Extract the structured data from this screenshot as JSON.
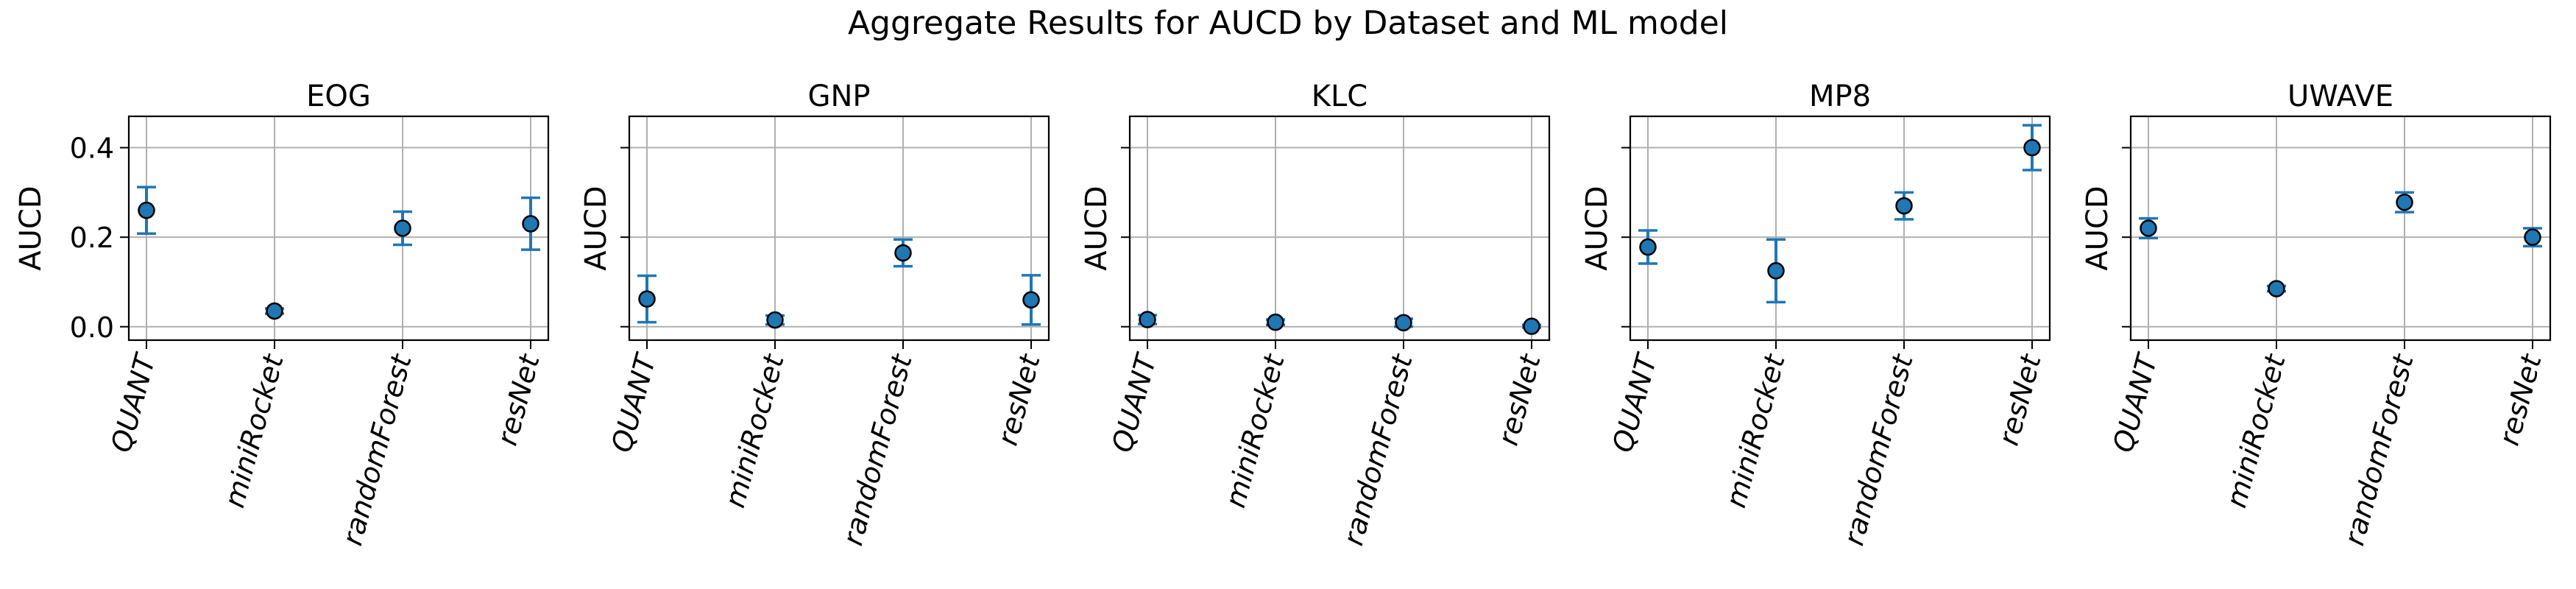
{
  "figure": {
    "suptitle": "Aggregate Results for AUCD by Dataset and ML model"
  },
  "style": {
    "marker_color": "#1f77b4",
    "marker_edge": "#000000",
    "errorbar_color": "#1f77b4",
    "grid_color": "#b0b0b0"
  },
  "chart_data": [
    {
      "type": "scatter",
      "title": "EOG",
      "xlabel": "",
      "ylabel": "AUCD",
      "categories": [
        "QUANT",
        "miniRocket",
        "randomForest",
        "resNet"
      ],
      "values": [
        0.26,
        0.035,
        0.22,
        0.23
      ],
      "errors": [
        0.052,
        0.006,
        0.037,
        0.058
      ],
      "ylim": [
        -0.03,
        0.47
      ],
      "yticks": [
        0.0,
        0.2,
        0.4
      ],
      "ytick_labels": [
        "0.0",
        "0.2",
        "0.4"
      ],
      "show_ytick_labels": true,
      "grid": true,
      "error_bars": true
    },
    {
      "type": "scatter",
      "title": "GNP",
      "xlabel": "",
      "ylabel": "AUCD",
      "categories": [
        "QUANT",
        "miniRocket",
        "randomForest",
        "resNet"
      ],
      "values": [
        0.062,
        0.015,
        0.165,
        0.06
      ],
      "errors": [
        0.052,
        0.01,
        0.03,
        0.055
      ],
      "ylim": [
        -0.03,
        0.47
      ],
      "yticks": [
        0.0,
        0.2,
        0.4
      ],
      "ytick_labels": [
        "0.0",
        "0.2",
        "0.4"
      ],
      "show_ytick_labels": false,
      "grid": true,
      "error_bars": true
    },
    {
      "type": "scatter",
      "title": "KLC",
      "xlabel": "",
      "ylabel": "AUCD",
      "categories": [
        "QUANT",
        "miniRocket",
        "randomForest",
        "resNet"
      ],
      "values": [
        0.016,
        0.01,
        0.009,
        0.001
      ],
      "errors": [
        0.01,
        0.006,
        0.009,
        0.003
      ],
      "ylim": [
        -0.03,
        0.47
      ],
      "yticks": [
        0.0,
        0.2,
        0.4
      ],
      "ytick_labels": [
        "0.0",
        "0.2",
        "0.4"
      ],
      "show_ytick_labels": false,
      "grid": true,
      "error_bars": true
    },
    {
      "type": "scatter",
      "title": "MP8",
      "xlabel": "",
      "ylabel": "AUCD",
      "categories": [
        "QUANT",
        "miniRocket",
        "randomForest",
        "resNet"
      ],
      "values": [
        0.178,
        0.125,
        0.27,
        0.4
      ],
      "errors": [
        0.037,
        0.07,
        0.03,
        0.05
      ],
      "ylim": [
        -0.03,
        0.47
      ],
      "yticks": [
        0.0,
        0.2,
        0.4
      ],
      "ytick_labels": [
        "0.0",
        "0.2",
        "0.4"
      ],
      "show_ytick_labels": false,
      "grid": true,
      "error_bars": true
    },
    {
      "type": "scatter",
      "title": "UWAVE",
      "xlabel": "",
      "ylabel": "AUCD",
      "categories": [
        "QUANT",
        "miniRocket",
        "randomForest",
        "resNet"
      ],
      "values": [
        0.22,
        0.085,
        0.278,
        0.2
      ],
      "errors": [
        0.022,
        0.006,
        0.022,
        0.02
      ],
      "ylim": [
        -0.03,
        0.47
      ],
      "yticks": [
        0.0,
        0.2,
        0.4
      ],
      "ytick_labels": [
        "0.0",
        "0.2",
        "0.4"
      ],
      "show_ytick_labels": false,
      "grid": true,
      "error_bars": true
    }
  ]
}
